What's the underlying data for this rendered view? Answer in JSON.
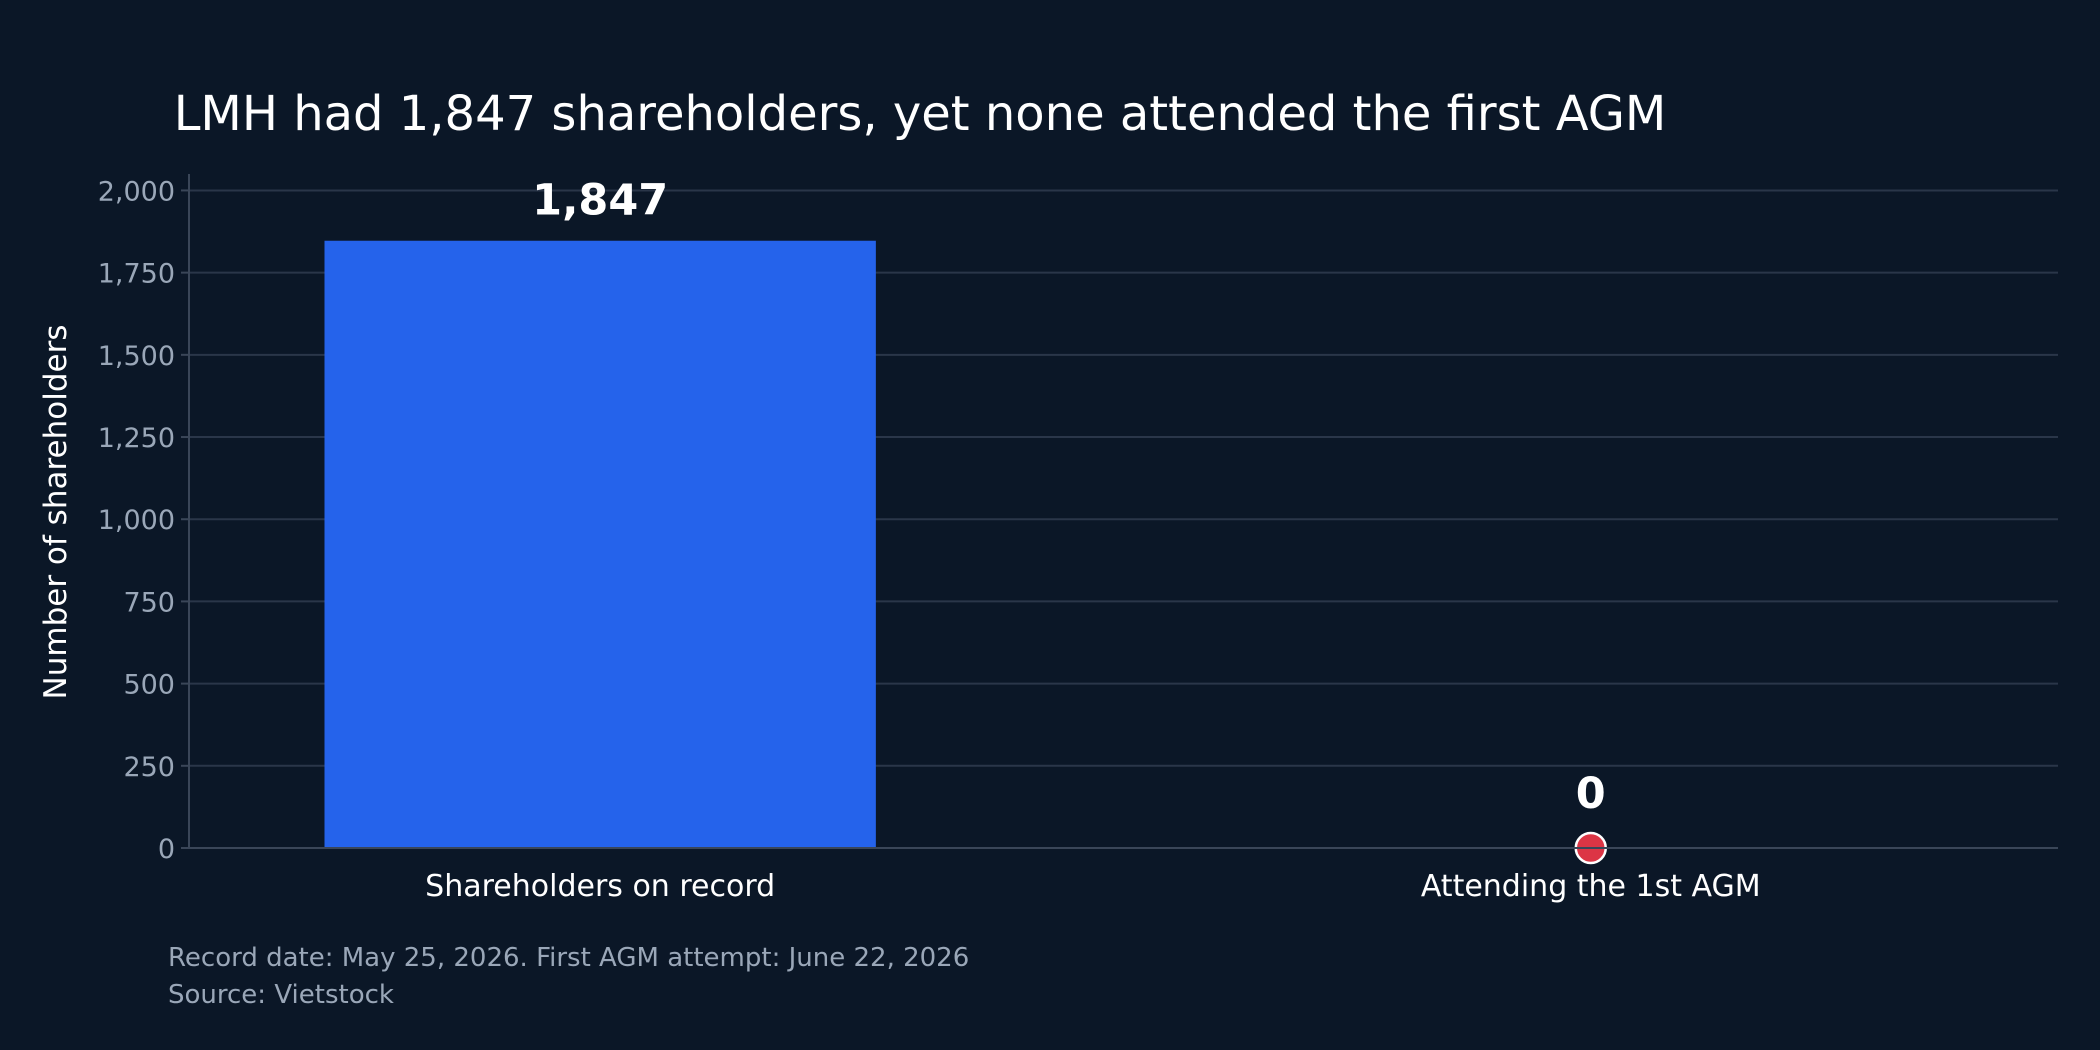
{
  "chart_data": {
    "type": "bar",
    "title": "LMH had 1,847 shareholders, yet none attended the first AGM",
    "xlabel": "",
    "ylabel": "Number of shareholders",
    "categories": [
      "Shareholders on record",
      "Attending the 1st AGM"
    ],
    "values": [
      1847,
      0
    ],
    "value_labels": [
      "1,847",
      "0"
    ],
    "ylim": [
      0,
      2050
    ],
    "yticks": [
      0,
      250,
      500,
      750,
      1000,
      1250,
      1500,
      1750,
      2000
    ],
    "ytick_labels": [
      "0",
      "250",
      "500",
      "750",
      "1,000",
      "1,250",
      "1,500",
      "1,750",
      "2,000"
    ],
    "grid": true,
    "legend": "none",
    "colors": {
      "background": "#0b1727",
      "bar": "#2563eb",
      "marker": "#dc3545",
      "grid": "#2a3649",
      "axis": "#3a4658"
    },
    "annotations": {
      "note": "Record date: May 25, 2026. First AGM attempt: June 22, 2026",
      "source": "Source: Vietstock"
    }
  }
}
